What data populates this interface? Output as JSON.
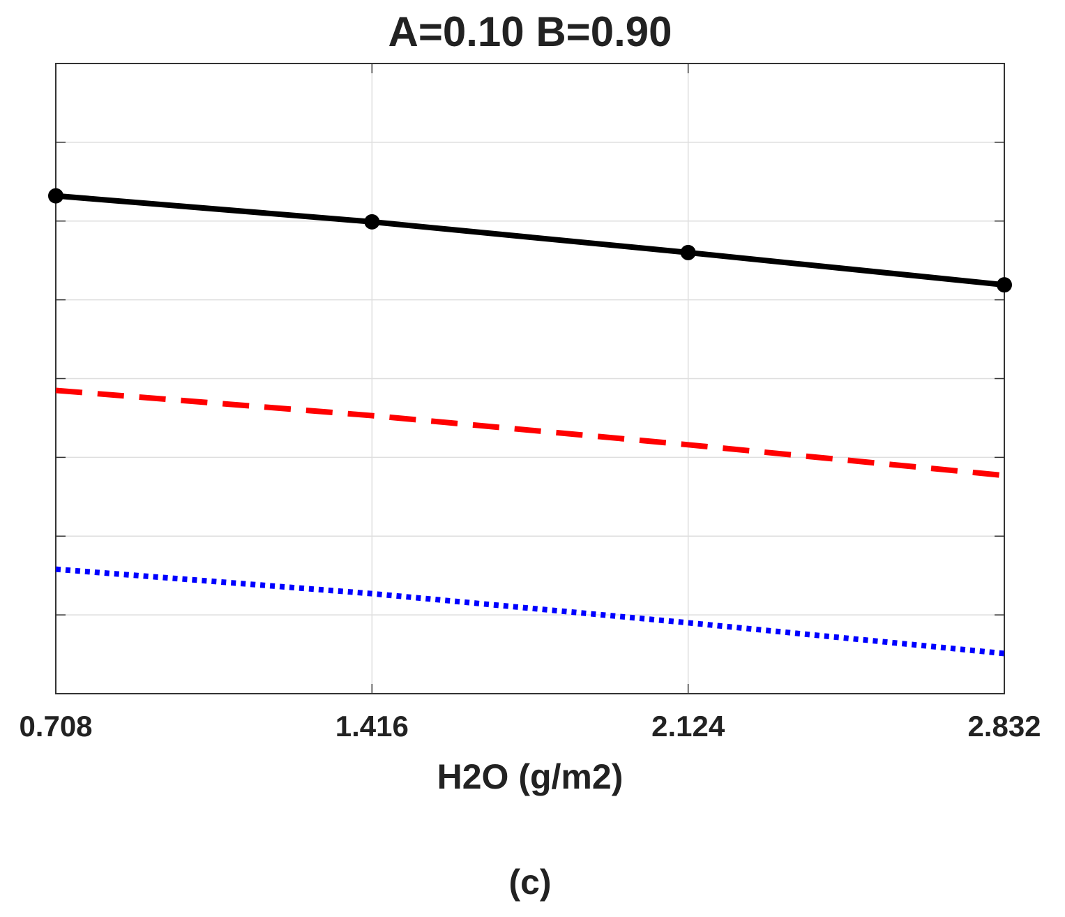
{
  "chart_data": {
    "type": "line",
    "title": "A=0.10   B=0.90",
    "xlabel": "H2O (g/m2)",
    "caption": "(c)",
    "x": [
      0.708,
      1.416,
      2.124,
      2.832
    ],
    "xlim": [
      0.708,
      2.832
    ],
    "xticks": [
      0.708,
      1.416,
      2.124,
      2.832
    ],
    "ylim": [
      0,
      8
    ],
    "ygrid": [
      1,
      2,
      3,
      4,
      5,
      6,
      7
    ],
    "grid": true,
    "series": [
      {
        "color": "#000000",
        "style": "solid",
        "marker": true,
        "values": [
          6.32,
          5.99,
          5.6,
          5.19
        ]
      },
      {
        "color": "#ff0000",
        "style": "dashed",
        "marker": false,
        "values": [
          3.85,
          3.53,
          3.16,
          2.77
        ]
      },
      {
        "color": "#0000ff",
        "style": "dotted",
        "marker": false,
        "values": [
          1.58,
          1.27,
          0.9,
          0.51
        ]
      }
    ]
  }
}
